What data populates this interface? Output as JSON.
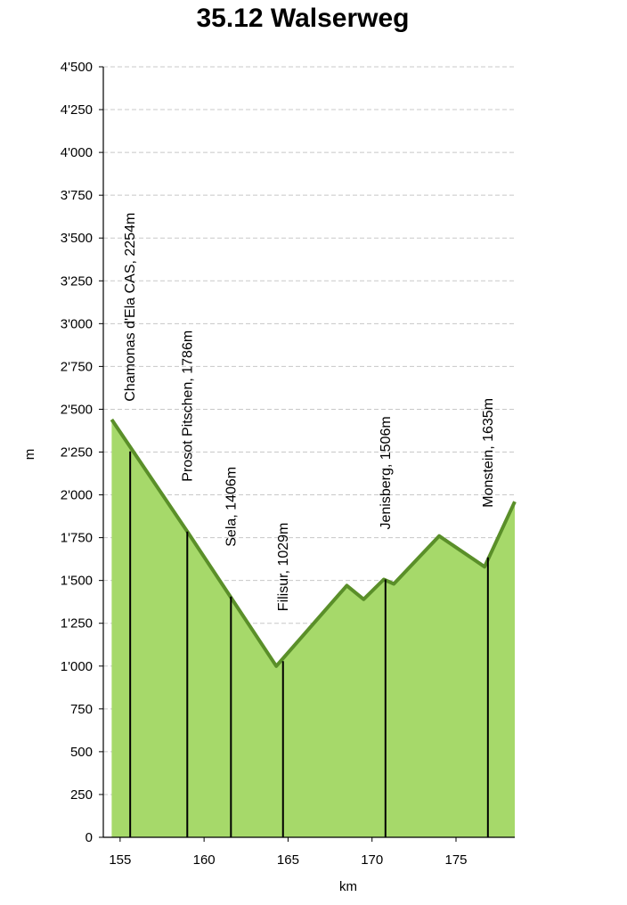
{
  "chart_data": {
    "type": "area",
    "title": "35.12 Walserweg",
    "xlabel": "km",
    "ylabel": "m",
    "xlim": [
      154,
      178.5
    ],
    "ylim": [
      0,
      4500
    ],
    "x_ticks": [
      155,
      160,
      165,
      170,
      175
    ],
    "x_tick_labels": [
      "155",
      "160",
      "165",
      "170",
      "175"
    ],
    "y_ticks": [
      0,
      250,
      500,
      750,
      1000,
      1250,
      1500,
      1750,
      2000,
      2250,
      2500,
      2750,
      3000,
      3250,
      3500,
      3750,
      4000,
      4250,
      4500
    ],
    "y_tick_labels": [
      "0",
      "250",
      "500",
      "750",
      "1'000",
      "1'250",
      "1'500",
      "1'750",
      "2'000",
      "2'250",
      "2'500",
      "2'750",
      "3'000",
      "3'250",
      "3'500",
      "3'750",
      "4'000",
      "4'250",
      "4'500"
    ],
    "grid": "horizontal dashed",
    "profile": {
      "x": [
        154.5,
        159.0,
        164.3,
        168.5,
        169.5,
        170.7,
        171.3,
        174.0,
        176.7,
        178.5
      ],
      "y": [
        2440,
        1786,
        1000,
        1470,
        1390,
        1506,
        1480,
        1760,
        1580,
        1960
      ]
    },
    "waypoints": [
      {
        "km": 155.6,
        "elev": 2254,
        "label": "Chamonas d'Ela CAS, 2254m"
      },
      {
        "km": 159.0,
        "elev": 1786,
        "label": "Prosot Pitschen, 1786m"
      },
      {
        "km": 161.6,
        "elev": 1406,
        "label": "Sela, 1406m"
      },
      {
        "km": 164.7,
        "elev": 1029,
        "label": "Filisur, 1029m"
      },
      {
        "km": 170.8,
        "elev": 1506,
        "label": "Jenisberg, 1506m"
      },
      {
        "km": 176.9,
        "elev": 1635,
        "label": "Monstein, 1635m"
      }
    ],
    "colors": {
      "fill": "#a6d96a",
      "line": "#5a8f29",
      "grid": "#c8c8c8",
      "marker": "#000000"
    }
  }
}
